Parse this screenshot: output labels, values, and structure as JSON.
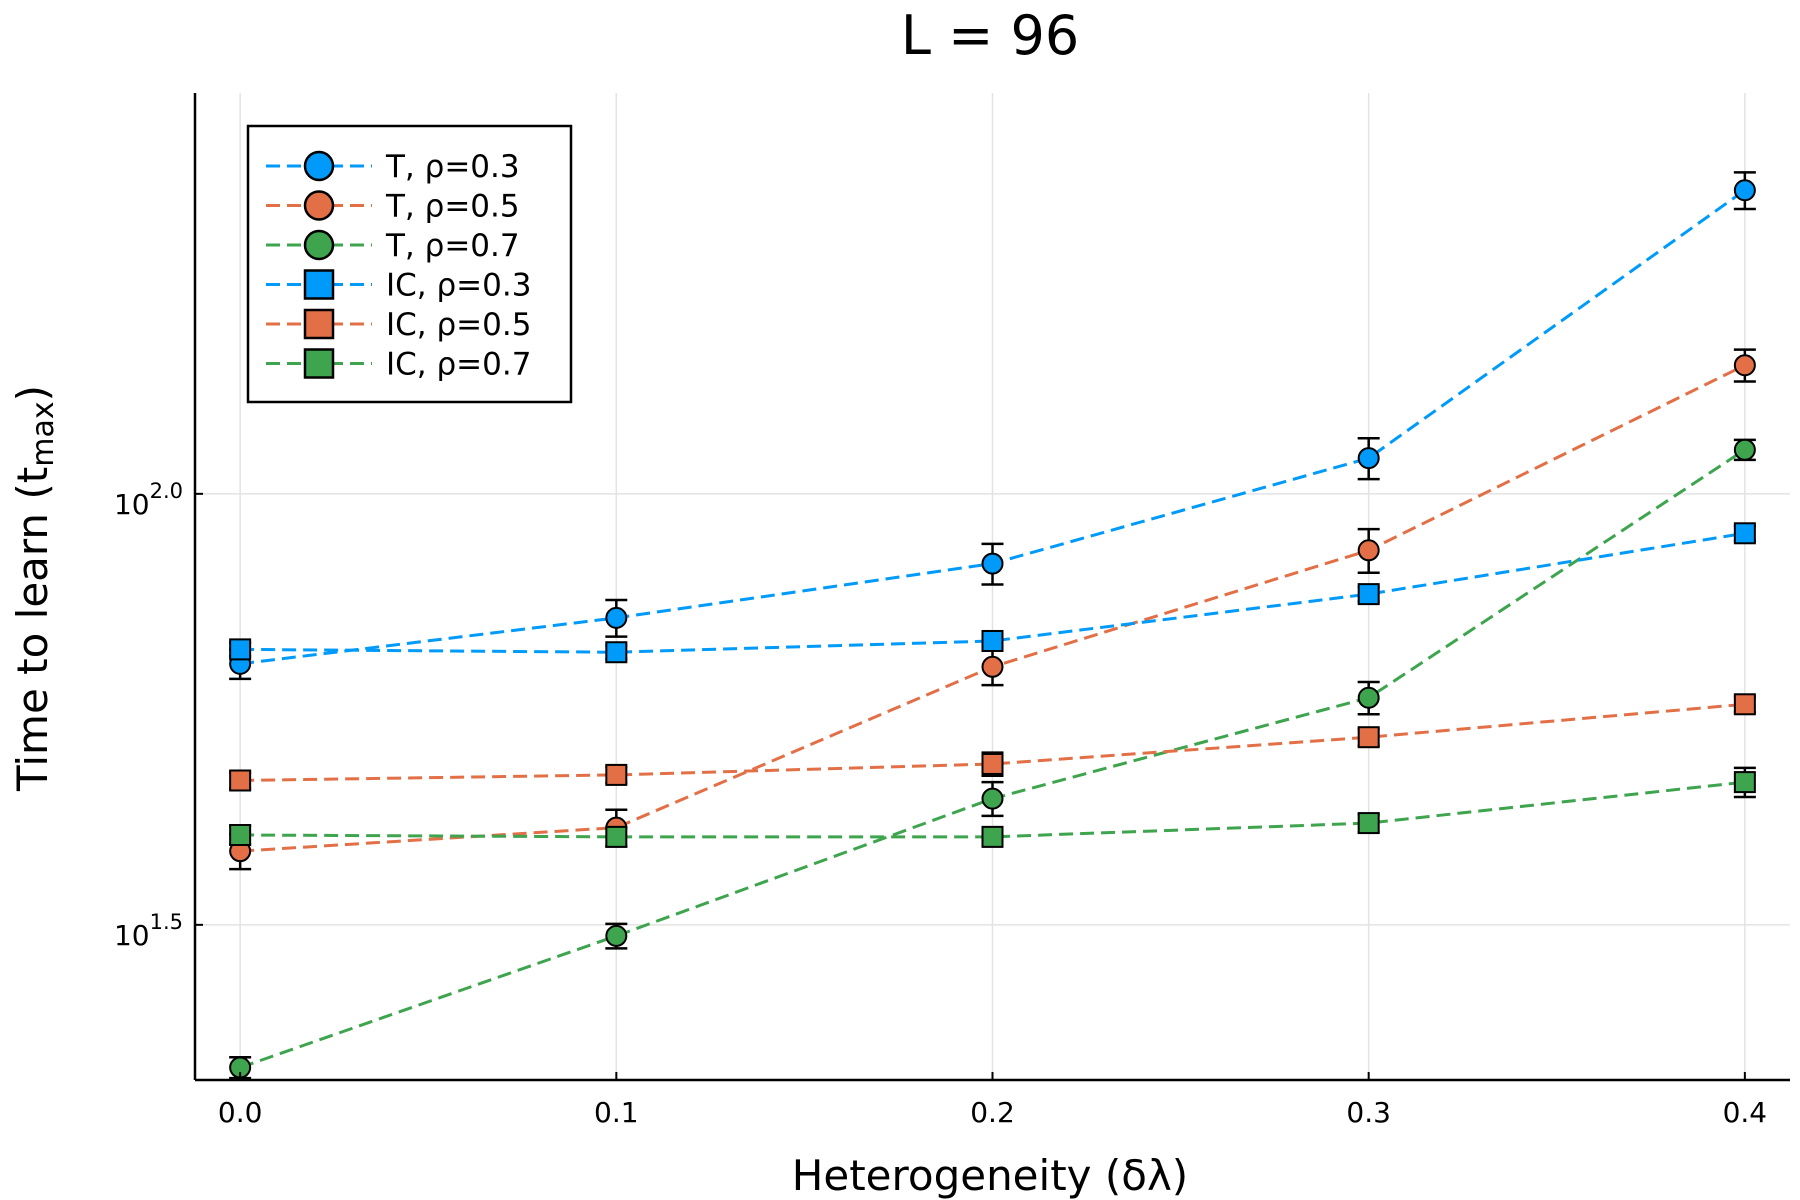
{
  "chart_data": {
    "type": "scatter",
    "title": "L = 96",
    "xlabel": "Heterogeneity (δλ)",
    "ylabel_main": "Time to learn (t",
    "ylabel_sub": "max",
    "ylabel_end": ")",
    "y_scale": "log10",
    "xlim": [
      -0.012,
      0.412
    ],
    "ylim_log10": [
      1.32,
      2.465
    ],
    "x_ticks": [
      0.0,
      0.1,
      0.2,
      0.3,
      0.4
    ],
    "x_tick_labels": [
      "0.0",
      "0.1",
      "0.2",
      "0.3",
      "0.4"
    ],
    "y_ticks_log10": [
      1.5,
      2.0
    ],
    "y_tick_base": "10",
    "y_tick_exponents": [
      "1.5",
      "2.0"
    ],
    "grid": true,
    "legend_position": "top-left",
    "x": [
      0.0,
      0.1,
      0.2,
      0.3,
      0.4
    ],
    "series": [
      {
        "name": "T, ρ=0.3",
        "marker": "circle",
        "color": "#009AFA",
        "values": [
          63.5,
          71.8,
          83.0,
          110.0,
          225.0
        ],
        "err_low": [
          2.5,
          3.5,
          4.5,
          6.0,
          11.0
        ],
        "err_high": [
          2.5,
          3.5,
          4.5,
          6.0,
          11.0
        ]
      },
      {
        "name": "T, ρ=0.5",
        "marker": "circle",
        "color": "#E36F47",
        "values": [
          38.5,
          41.0,
          63.0,
          86.0,
          141.0
        ],
        "err_low": [
          1.8,
          2.0,
          3.0,
          5.0,
          6.0
        ],
        "err_high": [
          1.8,
          2.0,
          3.0,
          5.0,
          6.0
        ]
      },
      {
        "name": "T, ρ=0.7",
        "marker": "circle",
        "color": "#3EA44E",
        "values": [
          21.6,
          30.7,
          44.3,
          58.0,
          112.5
        ],
        "err_low": [
          0.6,
          1.0,
          2.0,
          2.5,
          3.0
        ],
        "err_high": [
          0.6,
          1.0,
          2.0,
          2.5,
          3.0
        ]
      },
      {
        "name": "IC, ρ=0.3",
        "marker": "square",
        "color": "#009AFA",
        "values": [
          66.0,
          65.5,
          67.5,
          76.5,
          90.0
        ],
        "err_low": [
          1.2,
          1.2,
          1.5,
          1.5,
          1.8
        ],
        "err_high": [
          1.2,
          1.2,
          1.5,
          1.5,
          1.8
        ]
      },
      {
        "name": "IC, ρ=0.5",
        "marker": "square",
        "color": "#E36F47",
        "values": [
          46.5,
          47.2,
          48.6,
          52.2,
          57.0
        ],
        "err_low": [
          1.0,
          1.0,
          1.5,
          1.2,
          1.2
        ],
        "err_high": [
          1.0,
          1.0,
          1.5,
          1.2,
          1.2
        ]
      },
      {
        "name": "IC, ρ=0.7",
        "marker": "square",
        "color": "#3EA44E",
        "values": [
          40.2,
          40.0,
          40.0,
          41.5,
          46.3
        ],
        "err_low": [
          1.0,
          1.0,
          1.0,
          1.0,
          1.8
        ],
        "err_high": [
          1.0,
          1.0,
          1.0,
          1.0,
          1.8
        ]
      }
    ]
  }
}
